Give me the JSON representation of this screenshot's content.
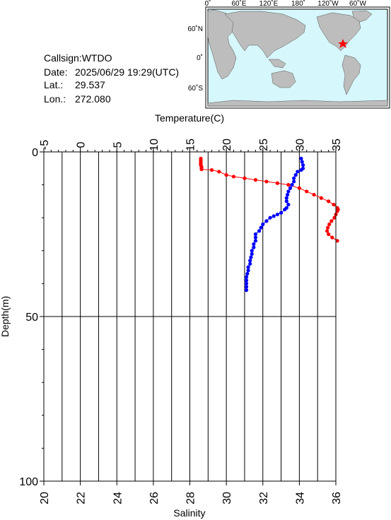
{
  "info": {
    "callsign": "Callsign:WTDO",
    "date_label": "Date:",
    "date_value": "2025/06/29 19:29(UTC)",
    "lat_label": "Lat.:",
    "lat_value": "29.537",
    "lon_label": "Lon.:",
    "lon_value": "272.080"
  },
  "map": {
    "top_labels": [
      "0˚",
      "60˚E",
      "120˚E",
      "180˚",
      "120˚W",
      "60˚W"
    ],
    "left_labels": [
      "60˚N",
      "0˚",
      "60˚S"
    ],
    "ocean_color": "#d6f7fb",
    "land_color": "#bdbdbd",
    "marker_color": "#ff0000"
  },
  "chart_data": {
    "type": "line",
    "title": "",
    "top_axis_label": "Temperature(C)",
    "bottom_axis_label": "Salinity",
    "left_axis_label": "Depth(m)",
    "temperature_ticks": [
      "-5",
      "0",
      "5",
      "10",
      "15",
      "20",
      "25",
      "30",
      "35"
    ],
    "salinity_ticks": [
      "20",
      "22",
      "24",
      "26",
      "28",
      "30",
      "32",
      "34",
      "36"
    ],
    "depth_ticks": [
      "0",
      "50",
      "100"
    ],
    "temperature_range": [
      -5,
      35
    ],
    "salinity_range": [
      20,
      36
    ],
    "depth_range": [
      0,
      100
    ],
    "grid": true,
    "series": [
      {
        "name": "",
        "axis": "temperature",
        "color": "#ff0000",
        "points": [
          [
            16.5,
            2.0
          ],
          [
            16.5,
            2.5
          ],
          [
            16.5,
            3.0
          ],
          [
            16.5,
            3.5
          ],
          [
            16.5,
            4.0
          ],
          [
            16.6,
            4.5
          ],
          [
            16.6,
            5.0
          ],
          [
            16.6,
            5.3
          ],
          [
            18.0,
            5.5
          ],
          [
            19.0,
            6.0
          ],
          [
            20.0,
            7.0
          ],
          [
            21.0,
            7.5
          ],
          [
            22.5,
            8.0
          ],
          [
            24.0,
            8.5
          ],
          [
            25.5,
            9.0
          ],
          [
            27.0,
            9.5
          ],
          [
            28.5,
            10.0
          ],
          [
            30.0,
            11.0
          ],
          [
            31.0,
            12.0
          ],
          [
            32.0,
            13.0
          ],
          [
            33.0,
            14.0
          ],
          [
            34.0,
            15.0
          ],
          [
            34.7,
            16.0
          ],
          [
            35.2,
            17.0
          ],
          [
            35.3,
            17.5
          ],
          [
            35.2,
            18.0
          ],
          [
            35.0,
            19.0
          ],
          [
            34.8,
            20.0
          ],
          [
            34.4,
            21.0
          ],
          [
            34.1,
            22.0
          ],
          [
            33.9,
            23.0
          ],
          [
            33.8,
            24.0
          ],
          [
            34.0,
            25.0
          ],
          [
            34.5,
            26.0
          ],
          [
            35.2,
            27.0
          ]
        ]
      },
      {
        "name": "",
        "axis": "salinity",
        "color": "#0000ff",
        "points": [
          [
            34.1,
            2.0
          ],
          [
            34.15,
            3.0
          ],
          [
            34.2,
            4.0
          ],
          [
            34.2,
            5.0
          ],
          [
            34.1,
            5.5
          ],
          [
            33.9,
            6.0
          ],
          [
            33.8,
            7.0
          ],
          [
            33.7,
            8.0
          ],
          [
            33.7,
            9.0
          ],
          [
            33.6,
            10.0
          ],
          [
            33.5,
            11.0
          ],
          [
            33.4,
            12.0
          ],
          [
            33.35,
            13.0
          ],
          [
            33.3,
            14.0
          ],
          [
            33.3,
            15.0
          ],
          [
            33.4,
            16.0
          ],
          [
            33.3,
            17.0
          ],
          [
            33.2,
            17.5
          ],
          [
            33.0,
            18.5
          ],
          [
            32.8,
            19.0
          ],
          [
            32.6,
            19.5
          ],
          [
            32.4,
            20.0
          ],
          [
            32.2,
            21.0
          ],
          [
            32.0,
            22.0
          ],
          [
            31.9,
            23.0
          ],
          [
            31.8,
            24.0
          ],
          [
            31.6,
            25.0
          ],
          [
            31.6,
            26.0
          ],
          [
            31.6,
            27.0
          ],
          [
            31.5,
            28.0
          ],
          [
            31.5,
            29.0
          ],
          [
            31.4,
            30.0
          ],
          [
            31.4,
            31.0
          ],
          [
            31.35,
            32.0
          ],
          [
            31.3,
            33.0
          ],
          [
            31.3,
            34.0
          ],
          [
            31.2,
            35.0
          ],
          [
            31.2,
            36.0
          ],
          [
            31.15,
            37.0
          ],
          [
            31.1,
            38.0
          ],
          [
            31.1,
            39.0
          ],
          [
            31.1,
            40.0
          ],
          [
            31.1,
            41.0
          ],
          [
            31.1,
            42.0
          ]
        ]
      }
    ]
  }
}
